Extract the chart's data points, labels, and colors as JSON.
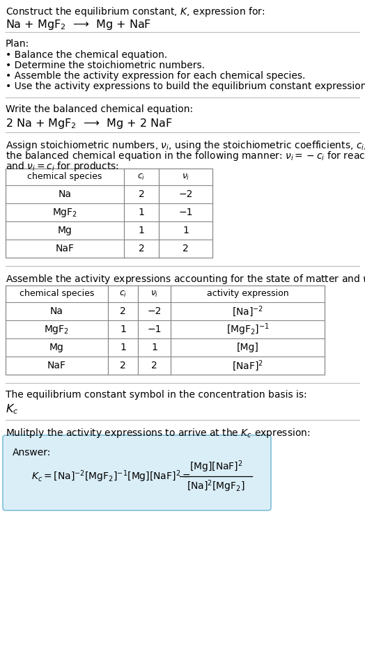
{
  "title_line1": "Construct the equilibrium constant, $K$, expression for:",
  "title_line2": "Na + MgF$_2$  ⟶  Mg + NaF",
  "plan_header": "Plan:",
  "plan_bullets": [
    "• Balance the chemical equation.",
    "• Determine the stoichiometric numbers.",
    "• Assemble the activity expression for each chemical species.",
    "• Use the activity expressions to build the equilibrium constant expression."
  ],
  "balanced_header": "Write the balanced chemical equation:",
  "balanced_eq": "2 Na + MgF$_2$  ⟶  Mg + 2 NaF",
  "stoich_intro1": "Assign stoichiometric numbers, $\\nu_i$, using the stoichiometric coefficients, $c_i$, from",
  "stoich_intro2": "the balanced chemical equation in the following manner: $\\nu_i = -c_i$ for reactants",
  "stoich_intro3": "and $\\nu_i = c_i$ for products:",
  "table1_headers": [
    "chemical species",
    "$c_i$",
    "$\\nu_i$"
  ],
  "table1_rows": [
    [
      "Na",
      "2",
      "−2"
    ],
    [
      "MgF$_2$",
      "1",
      "−1"
    ],
    [
      "Mg",
      "1",
      "1"
    ],
    [
      "NaF",
      "2",
      "2"
    ]
  ],
  "activity_intro": "Assemble the activity expressions accounting for the state of matter and $\\nu_i$:",
  "table2_headers": [
    "chemical species",
    "$c_i$",
    "$\\nu_i$",
    "activity expression"
  ],
  "table2_rows": [
    [
      "Na",
      "2",
      "−2",
      "[Na]$^{-2}$"
    ],
    [
      "MgF$_2$",
      "1",
      "−1",
      "[MgF$_2$]$^{-1}$"
    ],
    [
      "Mg",
      "1",
      "1",
      "[Mg]"
    ],
    [
      "NaF",
      "2",
      "2",
      "[NaF]$^2$"
    ]
  ],
  "Kc_intro": "The equilibrium constant symbol in the concentration basis is:",
  "Kc_symbol": "$K_c$",
  "multiply_intro": "Mulitply the activity expressions to arrive at the $K_c$ expression:",
  "answer_label": "Answer:",
  "answer_box_color": "#daeef7",
  "answer_box_edge": "#7fbfda",
  "bg_color": "#ffffff",
  "text_color": "#000000",
  "table_line_color": "#888888",
  "font_size": 10.0,
  "title2_font_size": 11.5,
  "small_font": 9.0
}
